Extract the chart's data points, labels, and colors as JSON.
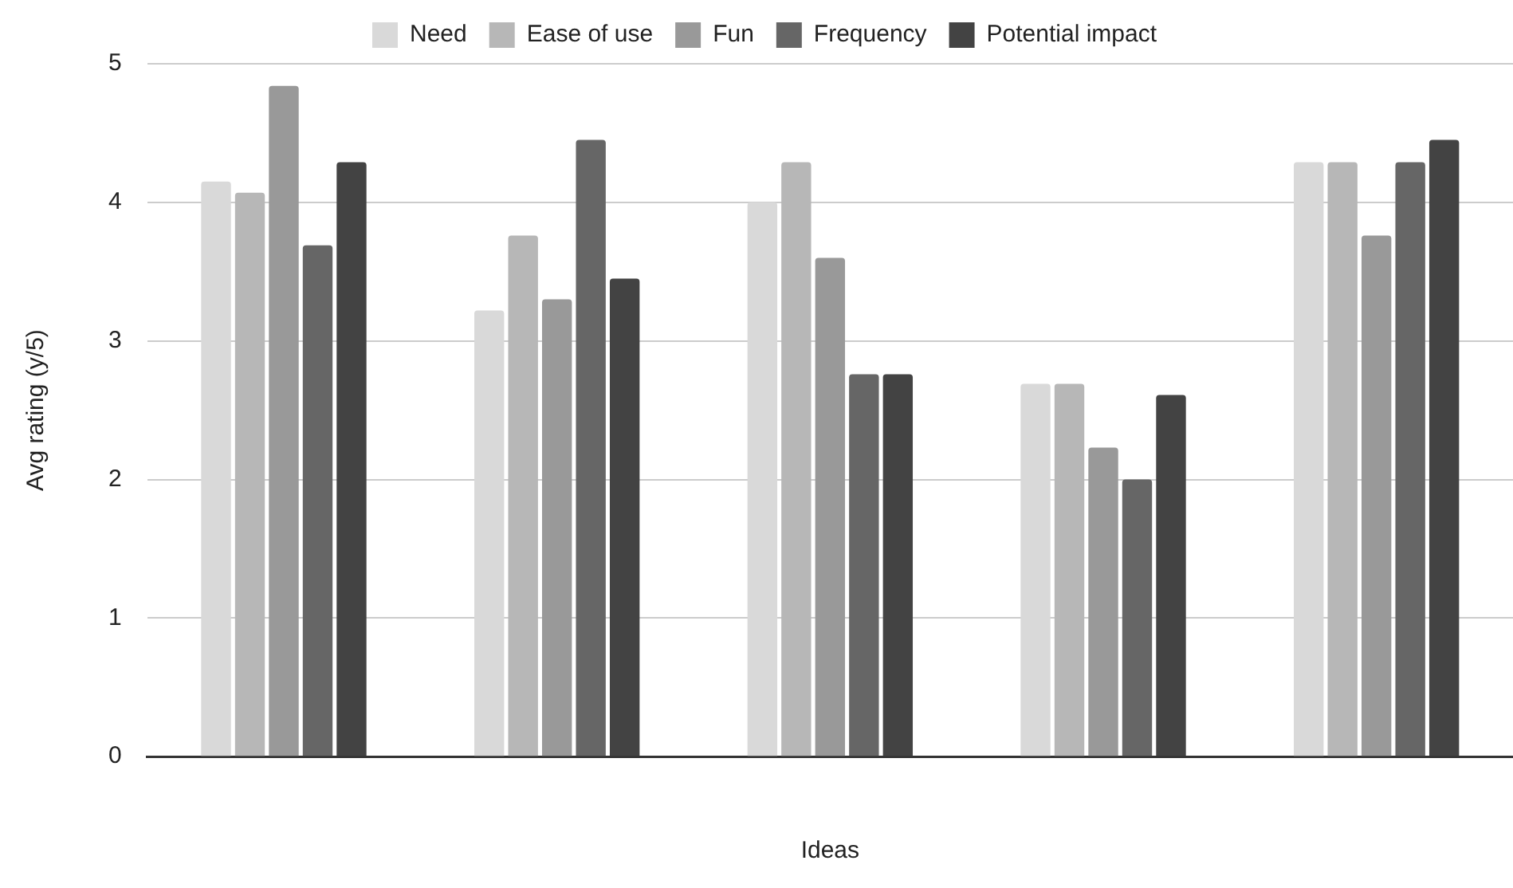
{
  "chart_data": {
    "type": "bar",
    "xlabel": "Ideas",
    "ylabel": "Avg rating (y/5)",
    "categories": [
      null,
      null,
      null,
      null,
      null
    ],
    "series": [
      {
        "name": "Need",
        "color": "#d9d9d9",
        "values": [
          4.15,
          3.22,
          4.0,
          2.69,
          4.29
        ]
      },
      {
        "name": "Ease of use",
        "color": "#b7b7b7",
        "values": [
          4.07,
          3.76,
          4.29,
          2.69,
          4.29
        ]
      },
      {
        "name": "Fun",
        "color": "#999999",
        "values": [
          4.84,
          3.3,
          3.6,
          2.23,
          3.76
        ]
      },
      {
        "name": "Frequency",
        "color": "#666666",
        "values": [
          3.69,
          4.45,
          2.76,
          2.0,
          4.29
        ]
      },
      {
        "name": "Potential impact",
        "color": "#434343",
        "values": [
          4.29,
          3.45,
          2.76,
          2.61,
          4.45
        ]
      }
    ],
    "ylim": [
      0,
      5
    ],
    "yticks": [
      0,
      1,
      2,
      3,
      4,
      5
    ],
    "grid": "y",
    "legend": "top"
  }
}
